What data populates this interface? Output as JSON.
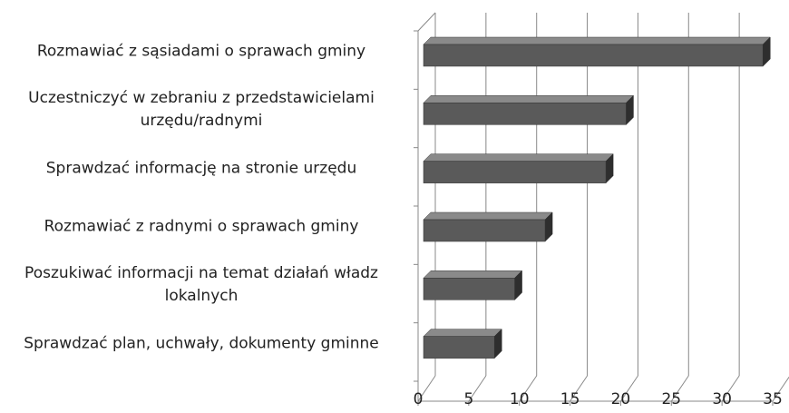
{
  "chart_data": {
    "type": "bar3d_horizontal",
    "categories": [
      "Rozmawiać z sąsiadami o sprawach gminy",
      "Uczestniczyć w zebraniu z przedstawicielami urzędu/radnymi",
      "Sprawdzać informację na stronie urzędu",
      "Rozmawiać z radnymi o sprawach gminy",
      "Poszukiwać informacji na temat działań władz lokalnych",
      "Sprawdzać plan, uchwały, dokumenty gminne"
    ],
    "values": [
      33.5,
      20,
      18,
      12,
      9,
      7
    ],
    "color": "#5a5a5a",
    "xlim": [
      0,
      35
    ],
    "xticks": [
      0,
      5,
      10,
      15,
      20,
      25,
      30,
      35
    ],
    "grid": true
  }
}
